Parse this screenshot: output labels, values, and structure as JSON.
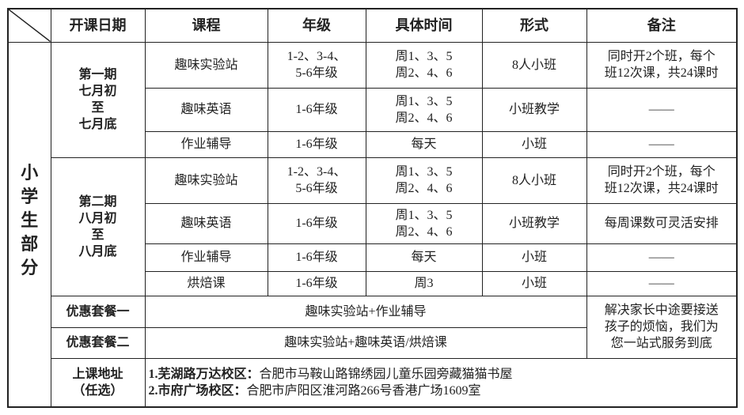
{
  "headers": [
    "开课日期",
    "课程",
    "年级",
    "具体时间",
    "形式",
    "备注"
  ],
  "side_label": "小学生部分",
  "periods": [
    {
      "label": [
        "第一期",
        "七月初",
        "至",
        "七月底"
      ],
      "rows": [
        {
          "course": "趣味实验站",
          "grade": "1-2、3-4、\n5-6年级",
          "time": "周1、3、5\n周2、4、6",
          "format": "8人小班",
          "note": "同时开2个班，每个\n班12次课，共24课时"
        },
        {
          "course": "趣味英语",
          "grade": "1-6年级",
          "time": "周1、3、5\n周2、4、6",
          "format": "小班教学",
          "note": "——"
        },
        {
          "course": "作业辅导",
          "grade": "1-6年级",
          "time": "每天",
          "format": "小班",
          "note": "——"
        }
      ]
    },
    {
      "label": [
        "第二期",
        "八月初",
        "至",
        "八月底"
      ],
      "rows": [
        {
          "course": "趣味实验站",
          "grade": "1-2、3-4、\n5-6年级",
          "time": "周1、3、5\n周2、4、6",
          "format": "8人小班",
          "note": "同时开2个班，每个\n班12次课，共24课时"
        },
        {
          "course": "趣味英语",
          "grade": "1-6年级",
          "time": "周1、3、5\n周2、4、6",
          "format": "小班教学",
          "note": "每周课数可灵活安排"
        },
        {
          "course": "作业辅导",
          "grade": "1-6年级",
          "time": "每天",
          "format": "小班",
          "note": "——"
        },
        {
          "course": "烘焙课",
          "grade": "1-6年级",
          "time": "周3",
          "format": "小班",
          "note": "——"
        }
      ]
    }
  ],
  "packages": [
    {
      "label": "优惠套餐一",
      "content": "趣味实验站+作业辅导"
    },
    {
      "label": "优惠套餐二",
      "content": "趣味实验站+趣味英语/烘焙课"
    }
  ],
  "package_note": "解决家长中途要接送\n孩子的烦恼，我们为\n您一站式服务到底",
  "address": {
    "label": [
      "上课地址",
      "（任选）"
    ],
    "lines": [
      {
        "campus": "1.芜湖路万达校区：",
        "addr": "合肥市马鞍山路锦绣园儿童乐园旁藏猫猫书屋"
      },
      {
        "campus": "2.市府广场校区：",
        "addr": "合肥市庐阳区淮河路266号香港广场1609室"
      }
    ]
  }
}
